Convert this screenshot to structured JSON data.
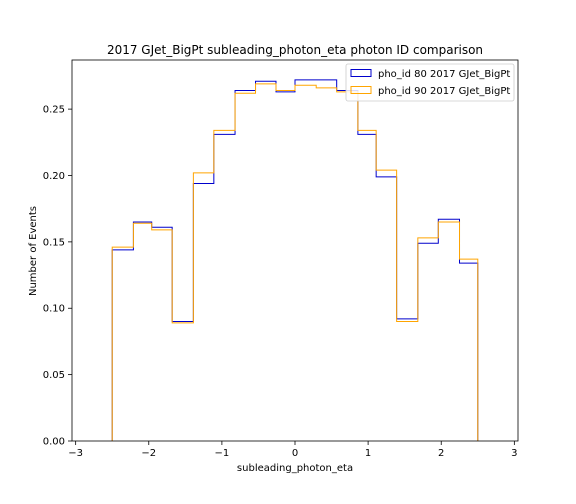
{
  "chart_data": {
    "type": "step",
    "title": "2017 GJet_BigPt subleading_photon_eta photon ID comparison",
    "xlabel": "subleading_photon_eta",
    "ylabel": "Number of Events",
    "xlim": [
      -3.05,
      3.05
    ],
    "ylim": [
      0,
      0.287
    ],
    "xticks": [
      -3,
      -2,
      -1,
      0,
      1,
      2,
      3
    ],
    "xtick_labels": [
      "−3",
      "−2",
      "−1",
      "0",
      "1",
      "2",
      "3"
    ],
    "yticks": [
      0.0,
      0.05,
      0.1,
      0.15,
      0.2,
      0.25
    ],
    "ytick_labels": [
      "0.00",
      "0.05",
      "0.10",
      "0.15",
      "0.20",
      "0.25"
    ],
    "bin_edges": [
      -2.5,
      -2.21,
      -1.96,
      -1.68,
      -1.39,
      -1.11,
      -0.82,
      -0.54,
      -0.26,
      0.0,
      0.29,
      0.57,
      0.86,
      1.11,
      1.39,
      1.68,
      1.96,
      2.25,
      2.5
    ],
    "grid": false,
    "legend_position": "top-right",
    "series": [
      {
        "name": "pho_id 80 2017 GJet_BigPt",
        "color": "#0000cc",
        "values": [
          0.144,
          0.165,
          0.161,
          0.09,
          0.194,
          0.231,
          0.264,
          0.271,
          0.263,
          0.272,
          0.272,
          0.264,
          0.231,
          0.199,
          0.092,
          0.149,
          0.167,
          0.134
        ]
      },
      {
        "name": "pho_id 90 2017 GJet_BigPt",
        "color": "#ffa500",
        "values": [
          0.146,
          0.164,
          0.159,
          0.089,
          0.202,
          0.234,
          0.262,
          0.269,
          0.264,
          0.268,
          0.266,
          0.263,
          0.234,
          0.204,
          0.09,
          0.153,
          0.165,
          0.137
        ]
      }
    ]
  }
}
